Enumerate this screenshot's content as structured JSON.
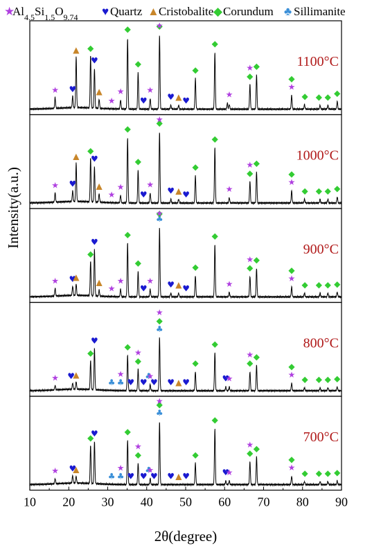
{
  "chart_data": {
    "type": "line",
    "title": "",
    "xlabel": "2θ(degree)",
    "ylabel": "Intensity(a.u.)",
    "xlim": [
      10,
      90
    ],
    "xticks": [
      10,
      20,
      30,
      40,
      50,
      60,
      70,
      80,
      90
    ],
    "grid": false,
    "legend": {
      "placement": "top",
      "entries": [
        {
          "text": "Al4.5Si1.5O9.74",
          "marker": "star",
          "color": "#b040e0"
        },
        {
          "text": "Quartz",
          "marker": "heart",
          "color": "#1a1ad0"
        },
        {
          "text": "Cristobalite",
          "marker": "triangle",
          "color": "#c8862a"
        },
        {
          "text": "Corundum",
          "marker": "diamond",
          "color": "#33cc33"
        },
        {
          "text": "Sillimanite",
          "marker": "club",
          "color": "#3a8fd8"
        }
      ]
    },
    "panels": [
      {
        "label": "1100°C",
        "peaks": [
          [
            16.5,
            0.14
          ],
          [
            21.0,
            0.15
          ],
          [
            21.9,
            0.66
          ],
          [
            25.6,
            0.68
          ],
          [
            26.6,
            0.52
          ],
          [
            27.8,
            0.12
          ],
          [
            33.3,
            0.12
          ],
          [
            35.1,
            0.93
          ],
          [
            37.8,
            0.48
          ],
          [
            40.9,
            0.14
          ],
          [
            43.3,
            0.97
          ],
          [
            46.2,
            0.05
          ],
          [
            48.2,
            0.05
          ],
          [
            52.5,
            0.4
          ],
          [
            57.5,
            0.74
          ],
          [
            60.7,
            0.08
          ],
          [
            61.2,
            0.06
          ],
          [
            66.5,
            0.32
          ],
          [
            68.2,
            0.45
          ],
          [
            77.2,
            0.18
          ],
          [
            80.5,
            0.06
          ],
          [
            84.5,
            0.05
          ],
          [
            86.5,
            0.05
          ],
          [
            88.9,
            0.1
          ]
        ],
        "markers": [
          [
            16.5,
            "star"
          ],
          [
            21.0,
            "heart"
          ],
          [
            21.9,
            "triangle"
          ],
          [
            25.6,
            "diamond"
          ],
          [
            26.6,
            "heart"
          ],
          [
            27.8,
            "triangle"
          ],
          [
            31.0,
            "star"
          ],
          [
            33.3,
            "star"
          ],
          [
            35.1,
            "diamond"
          ],
          [
            37.8,
            "diamond"
          ],
          [
            39.2,
            "heart"
          ],
          [
            40.9,
            "star"
          ],
          [
            43.3,
            "diamond"
          ],
          [
            43.3,
            "star"
          ],
          [
            46.2,
            "heart"
          ],
          [
            48.2,
            "triangle"
          ],
          [
            50.1,
            "heart"
          ],
          [
            52.5,
            "diamond"
          ],
          [
            57.5,
            "diamond"
          ],
          [
            61.2,
            "star"
          ],
          [
            66.5,
            "diamond"
          ],
          [
            66.5,
            "star"
          ],
          [
            68.2,
            "diamond"
          ],
          [
            77.2,
            "star"
          ],
          [
            77.2,
            "diamond"
          ],
          [
            80.6,
            "diamond"
          ],
          [
            84.2,
            "diamond"
          ],
          [
            86.5,
            "diamond"
          ],
          [
            88.9,
            "diamond"
          ]
        ]
      },
      {
        "label": "1000°C",
        "peaks": [
          [
            16.5,
            0.12
          ],
          [
            21.0,
            0.14
          ],
          [
            21.9,
            0.5
          ],
          [
            25.6,
            0.57
          ],
          [
            26.6,
            0.46
          ],
          [
            27.8,
            0.11
          ],
          [
            33.3,
            0.1
          ],
          [
            35.1,
            0.85
          ],
          [
            37.8,
            0.43
          ],
          [
            40.9,
            0.13
          ],
          [
            43.3,
            0.93
          ],
          [
            46.2,
            0.05
          ],
          [
            48.2,
            0.05
          ],
          [
            52.5,
            0.36
          ],
          [
            57.5,
            0.72
          ],
          [
            61.2,
            0.07
          ],
          [
            66.5,
            0.28
          ],
          [
            68.2,
            0.41
          ],
          [
            77.2,
            0.16
          ],
          [
            80.5,
            0.05
          ],
          [
            84.5,
            0.05
          ],
          [
            86.5,
            0.05
          ],
          [
            88.9,
            0.08
          ]
        ],
        "markers": [
          [
            16.5,
            "star"
          ],
          [
            21.0,
            "heart"
          ],
          [
            21.9,
            "triangle"
          ],
          [
            25.6,
            "diamond"
          ],
          [
            26.6,
            "heart"
          ],
          [
            27.8,
            "triangle"
          ],
          [
            31.0,
            "star"
          ],
          [
            33.3,
            "star"
          ],
          [
            35.1,
            "diamond"
          ],
          [
            37.8,
            "diamond"
          ],
          [
            39.2,
            "heart"
          ],
          [
            40.9,
            "star"
          ],
          [
            43.3,
            "diamond"
          ],
          [
            43.3,
            "star"
          ],
          [
            46.2,
            "heart"
          ],
          [
            48.2,
            "triangle"
          ],
          [
            50.1,
            "heart"
          ],
          [
            52.5,
            "diamond"
          ],
          [
            57.5,
            "diamond"
          ],
          [
            61.2,
            "star"
          ],
          [
            66.5,
            "diamond"
          ],
          [
            66.5,
            "star"
          ],
          [
            68.2,
            "diamond"
          ],
          [
            77.2,
            "star"
          ],
          [
            77.2,
            "diamond"
          ],
          [
            80.6,
            "diamond"
          ],
          [
            84.2,
            "diamond"
          ],
          [
            86.5,
            "diamond"
          ],
          [
            88.9,
            "diamond"
          ]
        ]
      },
      {
        "label": "900°C",
        "peaks": [
          [
            16.5,
            0.1
          ],
          [
            21.0,
            0.12
          ],
          [
            21.9,
            0.15
          ],
          [
            25.6,
            0.45
          ],
          [
            26.6,
            0.6
          ],
          [
            27.8,
            0.08
          ],
          [
            33.3,
            0.1
          ],
          [
            35.1,
            0.7
          ],
          [
            37.8,
            0.33
          ],
          [
            40.9,
            0.1
          ],
          [
            43.3,
            0.9
          ],
          [
            46.2,
            0.05
          ],
          [
            48.2,
            0.05
          ],
          [
            52.5,
            0.28
          ],
          [
            57.5,
            0.68
          ],
          [
            61.2,
            0.06
          ],
          [
            66.5,
            0.27
          ],
          [
            68.2,
            0.37
          ],
          [
            77.2,
            0.13
          ],
          [
            80.5,
            0.05
          ],
          [
            84.5,
            0.05
          ],
          [
            86.5,
            0.05
          ],
          [
            88.9,
            0.06
          ]
        ],
        "markers": [
          [
            16.5,
            "star"
          ],
          [
            21.0,
            "heart"
          ],
          [
            21.9,
            "triangle"
          ],
          [
            25.6,
            "diamond"
          ],
          [
            26.6,
            "heart"
          ],
          [
            27.8,
            "triangle"
          ],
          [
            31.0,
            "star"
          ],
          [
            33.3,
            "star"
          ],
          [
            35.1,
            "diamond"
          ],
          [
            37.8,
            "diamond"
          ],
          [
            39.2,
            "heart"
          ],
          [
            40.9,
            "star"
          ],
          [
            43.3,
            "club"
          ],
          [
            43.3,
            "diamond"
          ],
          [
            43.3,
            "star"
          ],
          [
            46.2,
            "heart"
          ],
          [
            48.2,
            "triangle"
          ],
          [
            50.1,
            "heart"
          ],
          [
            52.5,
            "diamond"
          ],
          [
            57.5,
            "diamond"
          ],
          [
            61.2,
            "star"
          ],
          [
            66.5,
            "diamond"
          ],
          [
            66.5,
            "star"
          ],
          [
            68.2,
            "diamond"
          ],
          [
            77.2,
            "star"
          ],
          [
            77.2,
            "diamond"
          ],
          [
            80.6,
            "diamond"
          ],
          [
            84.2,
            "diamond"
          ],
          [
            86.5,
            "diamond"
          ],
          [
            88.9,
            "diamond"
          ]
        ]
      },
      {
        "label": "800°C",
        "peaks": [
          [
            16.5,
            0.06
          ],
          [
            21.0,
            0.08
          ],
          [
            21.9,
            0.1
          ],
          [
            25.6,
            0.38
          ],
          [
            26.6,
            0.54
          ],
          [
            35.1,
            0.46
          ],
          [
            37.8,
            0.28
          ],
          [
            40.9,
            0.08
          ],
          [
            43.3,
            0.69
          ],
          [
            52.5,
            0.25
          ],
          [
            57.5,
            0.5
          ],
          [
            60.3,
            0.05
          ],
          [
            61.2,
            0.05
          ],
          [
            66.5,
            0.25
          ],
          [
            68.2,
            0.33
          ],
          [
            77.2,
            0.1
          ],
          [
            80.5,
            0.04
          ],
          [
            84.5,
            0.04
          ],
          [
            86.5,
            0.04
          ],
          [
            88.9,
            0.05
          ]
        ],
        "markers": [
          [
            16.5,
            "star"
          ],
          [
            20.6,
            "heart"
          ],
          [
            21.9,
            "triangle"
          ],
          [
            25.6,
            "diamond"
          ],
          [
            26.6,
            "heart"
          ],
          [
            31.0,
            "club"
          ],
          [
            33.3,
            "club"
          ],
          [
            33.3,
            "star"
          ],
          [
            35.1,
            "diamond"
          ],
          [
            35.9,
            "heart"
          ],
          [
            37.8,
            "diamond"
          ],
          [
            37.8,
            "star"
          ],
          [
            39.2,
            "heart"
          ],
          [
            40.5,
            "club"
          ],
          [
            40.9,
            "star"
          ],
          [
            41.9,
            "heart"
          ],
          [
            43.3,
            "club"
          ],
          [
            43.3,
            "diamond"
          ],
          [
            43.3,
            "star"
          ],
          [
            46.2,
            "heart"
          ],
          [
            48.2,
            "triangle"
          ],
          [
            50.1,
            "heart"
          ],
          [
            52.5,
            "diamond"
          ],
          [
            57.5,
            "diamond"
          ],
          [
            60.3,
            "heart"
          ],
          [
            61.2,
            "star"
          ],
          [
            66.5,
            "diamond"
          ],
          [
            66.5,
            "star"
          ],
          [
            68.2,
            "diamond"
          ],
          [
            77.2,
            "star"
          ],
          [
            77.2,
            "diamond"
          ],
          [
            80.6,
            "diamond"
          ],
          [
            84.2,
            "diamond"
          ],
          [
            86.5,
            "diamond"
          ],
          [
            88.9,
            "diamond"
          ]
        ]
      },
      {
        "label": "700°C",
        "peaks": [
          [
            16.5,
            0.07
          ],
          [
            21.0,
            0.1
          ],
          [
            21.9,
            0.09
          ],
          [
            25.6,
            0.5
          ],
          [
            26.6,
            0.55
          ],
          [
            35.1,
            0.58
          ],
          [
            37.8,
            0.28
          ],
          [
            40.9,
            0.08
          ],
          [
            43.3,
            0.82
          ],
          [
            52.5,
            0.28
          ],
          [
            57.5,
            0.73
          ],
          [
            60.3,
            0.05
          ],
          [
            61.2,
            0.05
          ],
          [
            66.5,
            0.3
          ],
          [
            68.2,
            0.36
          ],
          [
            77.2,
            0.11
          ],
          [
            80.5,
            0.04
          ],
          [
            84.5,
            0.04
          ],
          [
            86.5,
            0.04
          ],
          [
            88.9,
            0.05
          ]
        ],
        "markers": [
          [
            16.5,
            "star"
          ],
          [
            21.0,
            "heart"
          ],
          [
            21.9,
            "triangle"
          ],
          [
            25.6,
            "diamond"
          ],
          [
            26.6,
            "heart"
          ],
          [
            31.0,
            "club"
          ],
          [
            33.3,
            "club"
          ],
          [
            33.3,
            "star"
          ],
          [
            35.1,
            "diamond"
          ],
          [
            35.9,
            "heart"
          ],
          [
            37.8,
            "diamond"
          ],
          [
            37.8,
            "star"
          ],
          [
            39.2,
            "heart"
          ],
          [
            40.5,
            "club"
          ],
          [
            40.9,
            "star"
          ],
          [
            41.9,
            "heart"
          ],
          [
            43.3,
            "club"
          ],
          [
            43.3,
            "diamond"
          ],
          [
            43.3,
            "star"
          ],
          [
            46.2,
            "heart"
          ],
          [
            48.2,
            "triangle"
          ],
          [
            50.1,
            "heart"
          ],
          [
            52.5,
            "diamond"
          ],
          [
            57.5,
            "diamond"
          ],
          [
            60.3,
            "heart"
          ],
          [
            61.2,
            "star"
          ],
          [
            66.5,
            "diamond"
          ],
          [
            66.5,
            "star"
          ],
          [
            68.2,
            "diamond"
          ],
          [
            77.2,
            "star"
          ],
          [
            77.2,
            "diamond"
          ],
          [
            80.6,
            "diamond"
          ],
          [
            84.2,
            "diamond"
          ],
          [
            86.5,
            "diamond"
          ],
          [
            88.9,
            "diamond"
          ]
        ]
      }
    ]
  }
}
